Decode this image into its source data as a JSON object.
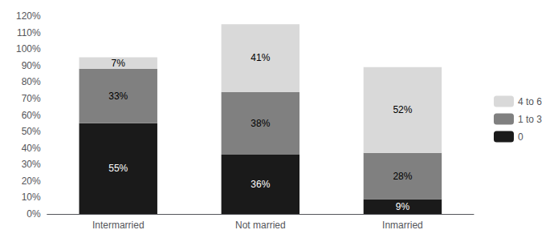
{
  "chart_data": {
    "type": "bar",
    "stacked": true,
    "data_labels": true,
    "grid": false,
    "legend": "right",
    "categories": [
      "Intermarried",
      "Not married",
      "Inmarried"
    ],
    "series": [
      {
        "name": "0",
        "color": "#1a1a1a",
        "values": [
          55,
          36,
          9
        ],
        "value_labels": [
          "55%",
          "36%",
          "9%"
        ]
      },
      {
        "name": "1 to 3",
        "color": "#808080",
        "values": [
          33,
          38,
          28
        ],
        "value_labels": [
          "33%",
          "38%",
          "28%"
        ]
      },
      {
        "name": "4 to 6",
        "color": "#d9d9d9",
        "values": [
          7,
          41,
          52
        ],
        "value_labels": [
          "7%",
          "41%",
          "52%"
        ]
      }
    ],
    "ylim": [
      0,
      120
    ],
    "yticks": [
      {
        "value": 0,
        "label": "0%"
      },
      {
        "value": 10,
        "label": "10%"
      },
      {
        "value": 20,
        "label": "20%"
      },
      {
        "value": 30,
        "label": "30%"
      },
      {
        "value": 40,
        "label": "40%"
      },
      {
        "value": 50,
        "label": "50%"
      },
      {
        "value": 60,
        "label": "60%"
      },
      {
        "value": 70,
        "label": "70%"
      },
      {
        "value": 80,
        "label": "80%"
      },
      {
        "value": 90,
        "label": "90%"
      },
      {
        "value": 100,
        "label": "100%"
      },
      {
        "value": 110,
        "label": "110%"
      },
      {
        "value": 120,
        "label": "120%"
      }
    ]
  }
}
